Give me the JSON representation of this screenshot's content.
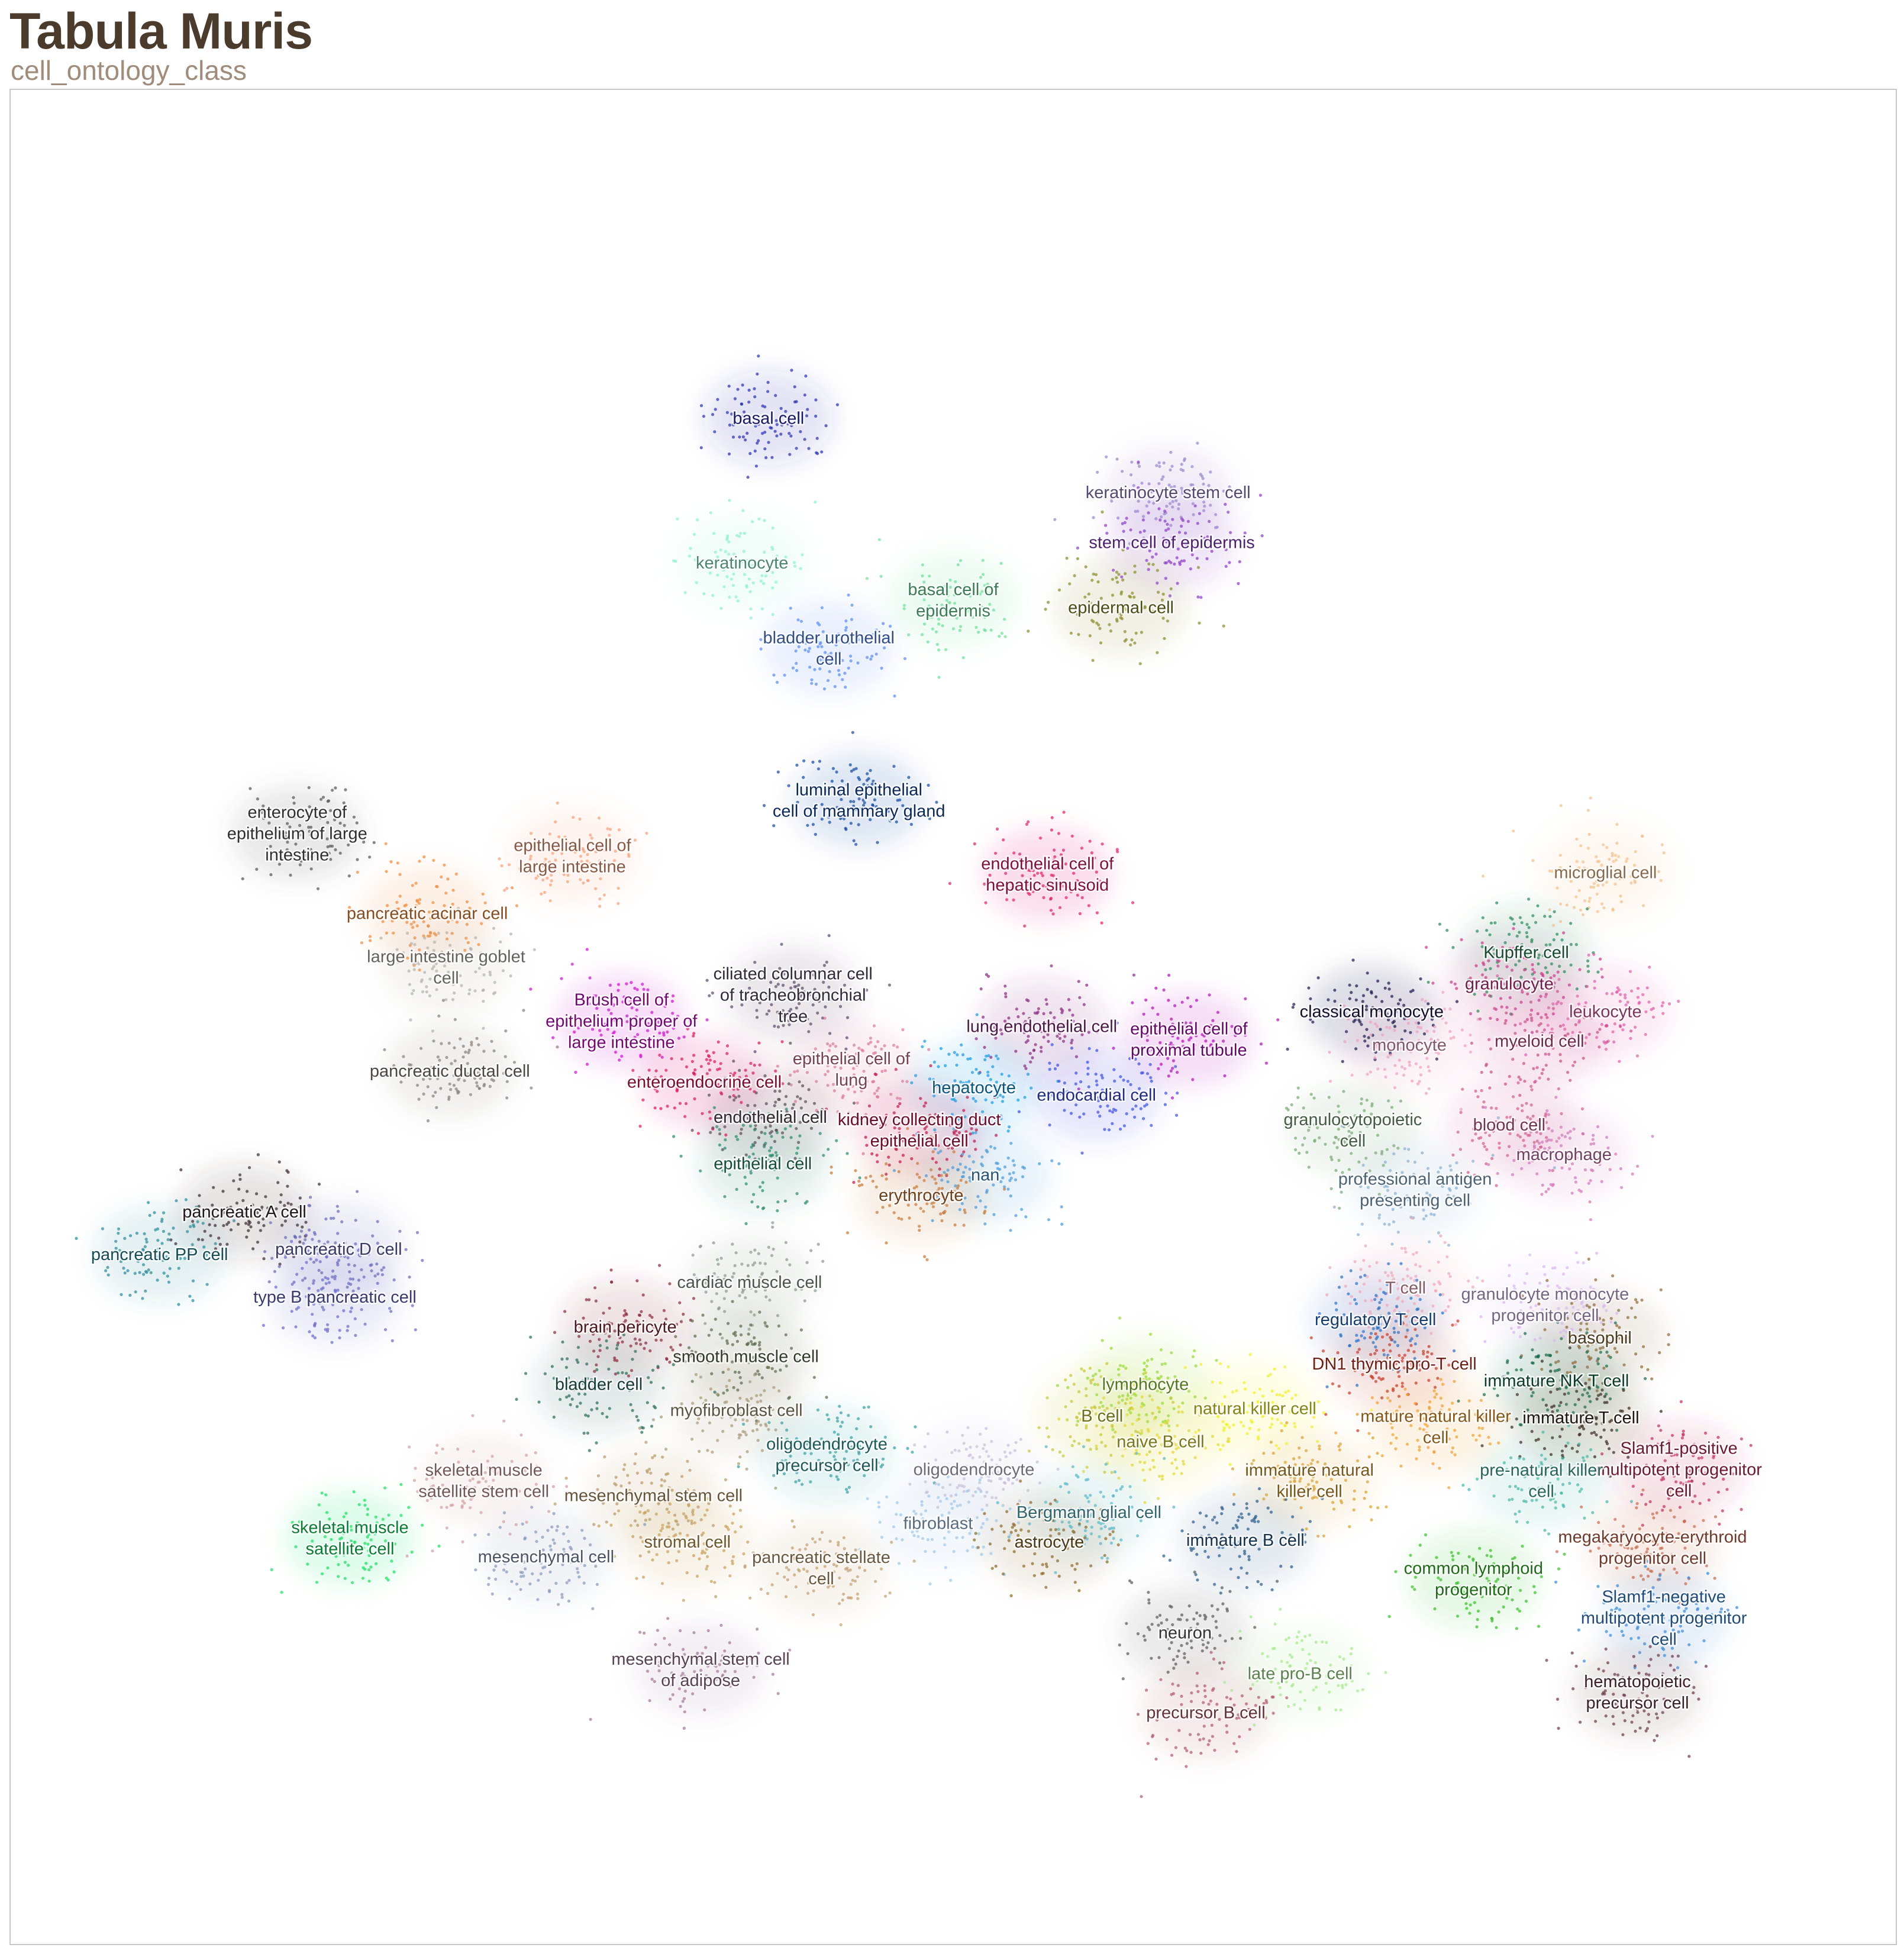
{
  "header": {
    "title": "Tabula Muris",
    "subtitle": "cell_ontology_class"
  },
  "chart_data": {
    "type": "scatter",
    "title": "Tabula Muris",
    "subtitle": "cell_ontology_class",
    "xlabel": "",
    "ylabel": "",
    "xlim": [
      0,
      100
    ],
    "ylim": [
      0,
      100
    ],
    "grid": false,
    "legend": "none (labels placed at cluster centers)",
    "series": [
      {
        "name": "basal cell",
        "color": "#2a2fb0",
        "x": 40.2,
        "y": 82.3
      },
      {
        "name": "keratinocyte stem cell",
        "color": "#9a85cc",
        "x": 61.4,
        "y": 78.3
      },
      {
        "name": "stem cell of epidermis",
        "color": "#8c3cc8",
        "x": 61.6,
        "y": 75.6
      },
      {
        "name": "keratinocyte",
        "color": "#8ff0d0",
        "x": 38.8,
        "y": 74.5
      },
      {
        "name": "basal cell of epidermis",
        "color": "#6ee09a",
        "x": 50.0,
        "y": 72.5
      },
      {
        "name": "epidermal cell",
        "color": "#8a8a2a",
        "x": 58.9,
        "y": 72.1
      },
      {
        "name": "bladder urothelial cell",
        "color": "#5a8cf0",
        "x": 43.4,
        "y": 69.9
      },
      {
        "name": "luminal epithelial cell of mammary gland",
        "color": "#1448a0",
        "x": 45.0,
        "y": 61.7
      },
      {
        "name": "enterocyte of epithelium of large intestine",
        "color": "#555555",
        "x": 15.2,
        "y": 59.9
      },
      {
        "name": "epithelial cell of large intestine",
        "color": "#f5a07a",
        "x": 29.8,
        "y": 58.7
      },
      {
        "name": "endothelial cell of hepatic sinusoid",
        "color": "#e0206a",
        "x": 55.0,
        "y": 57.7
      },
      {
        "name": "microglial cell",
        "color": "#f2c08c",
        "x": 84.6,
        "y": 57.8
      },
      {
        "name": "pancreatic acinar cell",
        "color": "#f08a3a",
        "x": 22.1,
        "y": 55.6
      },
      {
        "name": "large intestine goblet cell",
        "color": "#b8b0a8",
        "x": 23.1,
        "y": 52.7
      },
      {
        "name": "ciliated columnar cell of tracheobronchial tree",
        "color": "#5a4a68",
        "x": 41.5,
        "y": 51.2
      },
      {
        "name": "Kupffer cell",
        "color": "#2a8a5a",
        "x": 80.4,
        "y": 53.5
      },
      {
        "name": "granulocyte",
        "color": "#cc3a8a",
        "x": 79.5,
        "y": 51.8
      },
      {
        "name": "classical monocyte",
        "color": "#1a1a4a",
        "x": 72.2,
        "y": 50.3
      },
      {
        "name": "leukocyte",
        "color": "#e060a8",
        "x": 84.6,
        "y": 50.3
      },
      {
        "name": "lung endothelial cell",
        "color": "#8a2a80",
        "x": 54.7,
        "y": 49.5
      },
      {
        "name": "epithelial cell of proximal tubule",
        "color": "#b010b8",
        "x": 62.5,
        "y": 48.8
      },
      {
        "name": "Brush cell of epithelium proper of large intestine",
        "color": "#cc10cc",
        "x": 32.4,
        "y": 49.8
      },
      {
        "name": "monocyte",
        "color": "#f0a0c0",
        "x": 74.2,
        "y": 48.5
      },
      {
        "name": "myeloid cell",
        "color": "#c8508a",
        "x": 81.1,
        "y": 48.7
      },
      {
        "name": "pancreatic ductal cell",
        "color": "#8a8078",
        "x": 23.3,
        "y": 47.1
      },
      {
        "name": "epithelial cell of lung",
        "color": "#d87a98",
        "x": 44.6,
        "y": 47.2
      },
      {
        "name": "enteroendocrine cell",
        "color": "#d81a5a",
        "x": 36.8,
        "y": 46.5
      },
      {
        "name": "hepatocyte",
        "color": "#1a9ae0",
        "x": 51.1,
        "y": 46.2
      },
      {
        "name": "endocardial cell",
        "color": "#3a50e0",
        "x": 57.6,
        "y": 45.8
      },
      {
        "name": "endothelial cell",
        "color": "#5a4a58",
        "x": 40.3,
        "y": 44.6
      },
      {
        "name": "kidney collecting duct epithelial cell",
        "color": "#c0184a",
        "x": 48.2,
        "y": 43.9
      },
      {
        "name": "granulocytopoietic cell",
        "color": "#7aa878",
        "x": 71.2,
        "y": 43.9
      },
      {
        "name": "blood cell",
        "color": "#d06090",
        "x": 79.5,
        "y": 44.2
      },
      {
        "name": "epithelial cell",
        "color": "#2a8a6a",
        "x": 39.9,
        "y": 42.1
      },
      {
        "name": "nan",
        "color": "#4a9ad8",
        "x": 51.7,
        "y": 41.5
      },
      {
        "name": "macrophage",
        "color": "#d078b8",
        "x": 82.4,
        "y": 42.6
      },
      {
        "name": "professional antigen presenting cell",
        "color": "#8ab0d0",
        "x": 74.5,
        "y": 40.7
      },
      {
        "name": "erythrocyte",
        "color": "#c87838",
        "x": 48.3,
        "y": 40.4
      },
      {
        "name": "pancreatic A cell",
        "color": "#3a2a30",
        "x": 12.4,
        "y": 39.5
      },
      {
        "name": "pancreatic D cell",
        "color": "#6a6ab8",
        "x": 17.4,
        "y": 37.5
      },
      {
        "name": "pancreatic PP cell",
        "color": "#2a8a98",
        "x": 7.9,
        "y": 37.2
      },
      {
        "name": "type B pancreatic cell",
        "color": "#6a6ac8",
        "x": 17.2,
        "y": 34.9
      },
      {
        "name": "cardiac muscle cell",
        "color": "#8a9a8a",
        "x": 39.2,
        "y": 35.7
      },
      {
        "name": "T cell",
        "color": "#f0a8b8",
        "x": 74.0,
        "y": 35.4
      },
      {
        "name": "granulocyte monocyte progenitor cell",
        "color": "#d8b8f0",
        "x": 81.4,
        "y": 34.5
      },
      {
        "name": "regulatory T cell",
        "color": "#2a70c8",
        "x": 72.4,
        "y": 33.7
      },
      {
        "name": "brain pericyte",
        "color": "#8a2a3a",
        "x": 32.6,
        "y": 33.3
      },
      {
        "name": "basophil",
        "color": "#8a6a3a",
        "x": 84.3,
        "y": 32.7
      },
      {
        "name": "DN1 thymic pro-T cell",
        "color": "#c83a2a",
        "x": 73.4,
        "y": 31.3
      },
      {
        "name": "smooth muscle cell",
        "color": "#5a6a4a",
        "x": 39.0,
        "y": 31.7
      },
      {
        "name": "lymphocyte",
        "color": "#9ad838",
        "x": 60.2,
        "y": 30.2
      },
      {
        "name": "immature NK T cell",
        "color": "#1a6a4a",
        "x": 82.0,
        "y": 30.4
      },
      {
        "name": "bladder cell",
        "color": "#2a6a5a",
        "x": 31.2,
        "y": 30.2
      },
      {
        "name": "myofibroblast cell",
        "color": "#a89878",
        "x": 38.5,
        "y": 28.8
      },
      {
        "name": "natural killer cell",
        "color": "#f0f028",
        "x": 66.0,
        "y": 28.9
      },
      {
        "name": "B cell",
        "color": "#c8c838",
        "x": 57.9,
        "y": 28.5
      },
      {
        "name": "mature natural killer cell",
        "color": "#f0a030",
        "x": 75.6,
        "y": 27.9
      },
      {
        "name": "immature T cell",
        "color": "#3a2a20",
        "x": 83.3,
        "y": 28.4
      },
      {
        "name": "naive B cell",
        "color": "#e0d838",
        "x": 61.0,
        "y": 27.1
      },
      {
        "name": "Slamf1-positive multipotent progenitor cell",
        "color": "#c03060",
        "x": 88.5,
        "y": 25.6
      },
      {
        "name": "oligodendrocyte precursor cell",
        "color": "#38a0a0",
        "x": 43.3,
        "y": 26.4
      },
      {
        "name": "oligodendrocyte",
        "color": "#c8c0d8",
        "x": 51.1,
        "y": 25.6
      },
      {
        "name": "skeletal muscle satellite stem cell",
        "color": "#d0a0a0",
        "x": 25.1,
        "y": 25.0
      },
      {
        "name": "immature natural killer cell",
        "color": "#d8a030",
        "x": 68.9,
        "y": 25.0
      },
      {
        "name": "pre-natural killer cell",
        "color": "#48b8a8",
        "x": 81.2,
        "y": 25.0
      },
      {
        "name": "mesenchymal stem cell",
        "color": "#b89868",
        "x": 34.1,
        "y": 24.2
      },
      {
        "name": "Bergmann glial cell",
        "color": "#5ab8c8",
        "x": 57.2,
        "y": 23.3
      },
      {
        "name": "skeletal muscle satellite cell",
        "color": "#18e060",
        "x": 18.0,
        "y": 21.9
      },
      {
        "name": "fibroblast",
        "color": "#a0c8e8",
        "x": 49.2,
        "y": 22.7
      },
      {
        "name": "astrocyte",
        "color": "#8a6a2a",
        "x": 55.1,
        "y": 21.7
      },
      {
        "name": "stromal cell",
        "color": "#c8a058",
        "x": 35.9,
        "y": 21.7
      },
      {
        "name": "immature B cell",
        "color": "#2a5a8a",
        "x": 65.5,
        "y": 21.8
      },
      {
        "name": "megakaryocyte-erythroid progenitor cell",
        "color": "#c86a50",
        "x": 87.1,
        "y": 21.4
      },
      {
        "name": "mesenchymal cell",
        "color": "#8898b8",
        "x": 28.4,
        "y": 20.9
      },
      {
        "name": "pancreatic stellate cell",
        "color": "#c0a070",
        "x": 43.0,
        "y": 20.3
      },
      {
        "name": "common lymphoid progenitor",
        "color": "#38c028",
        "x": 77.6,
        "y": 19.7
      },
      {
        "name": "Slamf1-negative multipotent progenitor cell",
        "color": "#3a8ad8",
        "x": 87.7,
        "y": 17.6
      },
      {
        "name": "neuron",
        "color": "#5a5a5a",
        "x": 62.3,
        "y": 16.8
      },
      {
        "name": "mesenchymal stem cell of adipose",
        "color": "#a07898",
        "x": 36.6,
        "y": 14.8
      },
      {
        "name": "late pro-B cell",
        "color": "#a8e890",
        "x": 68.4,
        "y": 14.6
      },
      {
        "name": "hematopoietic precursor cell",
        "color": "#6a3a48",
        "x": 86.3,
        "y": 13.6
      },
      {
        "name": "precursor B cell",
        "color": "#b05a6a",
        "x": 63.4,
        "y": 12.5
      }
    ]
  }
}
